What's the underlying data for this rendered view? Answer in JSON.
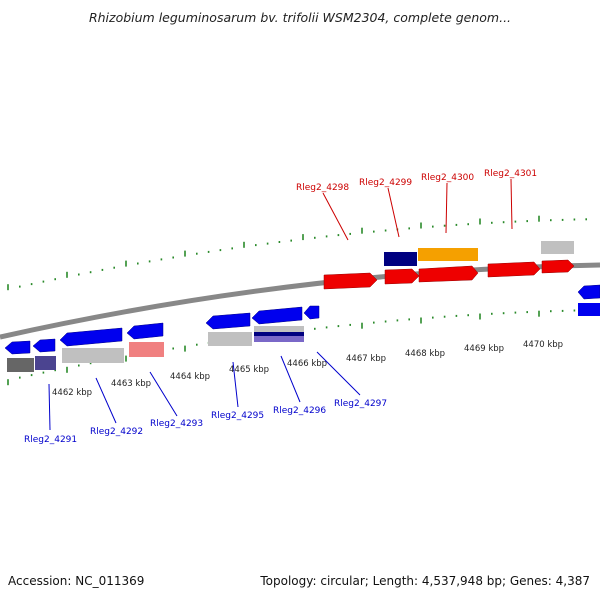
{
  "title": "Rhizobium leguminosarum bv. trifolii WSM2304, complete genom...",
  "footer": {
    "accession": "Accession: NC_011369",
    "summary": "Topology: circular; Length: 4,537,948 bp; Genes: 4,387"
  },
  "kbp_labels": [
    "4462 kbp",
    "4463 kbp",
    "4464 kbp",
    "4465 kbp",
    "4466 kbp",
    "4467 kbp",
    "4468 kbp",
    "4469 kbp",
    "4470 kbp"
  ],
  "top_gene_labels": [
    "Rleg2_4298",
    "Rleg2_4299",
    "Rleg2_4300",
    "Rleg2_4301"
  ],
  "bottom_gene_labels": [
    "Rleg2_4291",
    "Rleg2_4292",
    "Rleg2_4293",
    "Rleg2_4295",
    "Rleg2_4296",
    "Rleg2_4297"
  ],
  "colors": {
    "backbone": "#888888",
    "tick": "#2a8a2a",
    "forward_gene": "#ee0000",
    "reverse_gene": "#0000ee",
    "orange_gene": "#f5a000",
    "navy_gene": "#000080",
    "gray_gene": "#c0c0c0",
    "pink_gene": "#f08080",
    "top_label": "#cc0000",
    "bottom_label": "#0000cc"
  }
}
